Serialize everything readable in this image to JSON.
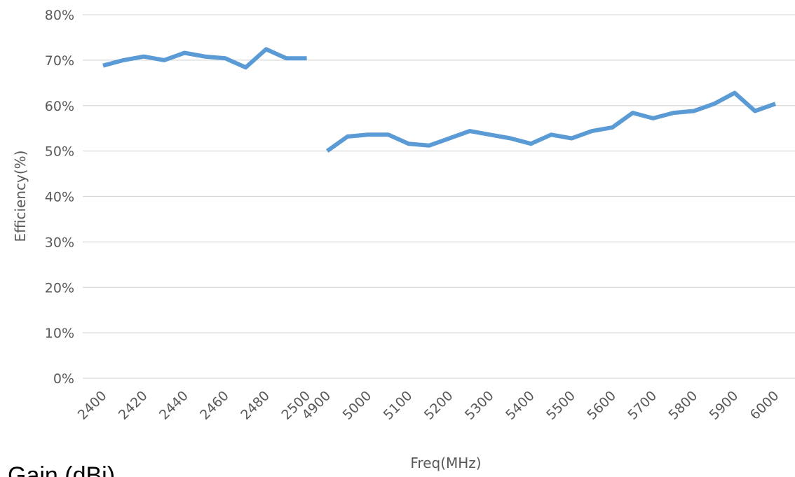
{
  "chart_data": {
    "type": "line",
    "ylabel": "Efficiency(%)",
    "xlabel": "Freq(MHz)",
    "ylim": [
      0,
      80
    ],
    "y_ticks": [
      "0%",
      "10%",
      "20%",
      "30%",
      "40%",
      "50%",
      "60%",
      "70%",
      "80%"
    ],
    "grid": true,
    "categories": [
      "2400",
      "2410",
      "2420",
      "2430",
      "2440",
      "2450",
      "2460",
      "2470",
      "2480",
      "2490",
      "2500",
      "4900",
      "4950",
      "5000",
      "5050",
      "5100",
      "5150",
      "5200",
      "5250",
      "5300",
      "5350",
      "5400",
      "5450",
      "5500",
      "5550",
      "5600",
      "5650",
      "5700",
      "5750",
      "5800",
      "5850",
      "5900",
      "5950",
      "6000"
    ],
    "x_tick_labels": [
      "2400",
      "2420",
      "2440",
      "2460",
      "2480",
      "2500",
      "4900",
      "5000",
      "5100",
      "5200",
      "5300",
      "5400",
      "5500",
      "5600",
      "5700",
      "5800",
      "5900",
      "6000"
    ],
    "series": [
      {
        "color": "#5b9bd5",
        "values": [
          68.8,
          70.0,
          70.8,
          70.0,
          71.6,
          70.8,
          70.4,
          68.4,
          72.4,
          70.4,
          70.4,
          null,
          null,
          null,
          null,
          null,
          null,
          null,
          null,
          null,
          null,
          null,
          null,
          null,
          null,
          null,
          null,
          null,
          null,
          null,
          null,
          null,
          null,
          null
        ]
      },
      {
        "color": "#5b9bd5",
        "values": [
          null,
          null,
          null,
          null,
          null,
          null,
          null,
          null,
          null,
          null,
          null,
          50.0,
          53.2,
          53.6,
          53.6,
          51.6,
          51.2,
          52.8,
          54.4,
          53.6,
          52.8,
          51.6,
          53.6,
          52.8,
          54.4,
          55.2,
          58.4,
          57.2,
          58.4,
          58.8,
          60.4,
          62.8,
          58.8,
          60.4
        ]
      }
    ]
  },
  "stray_text": "Gain (dBi)"
}
